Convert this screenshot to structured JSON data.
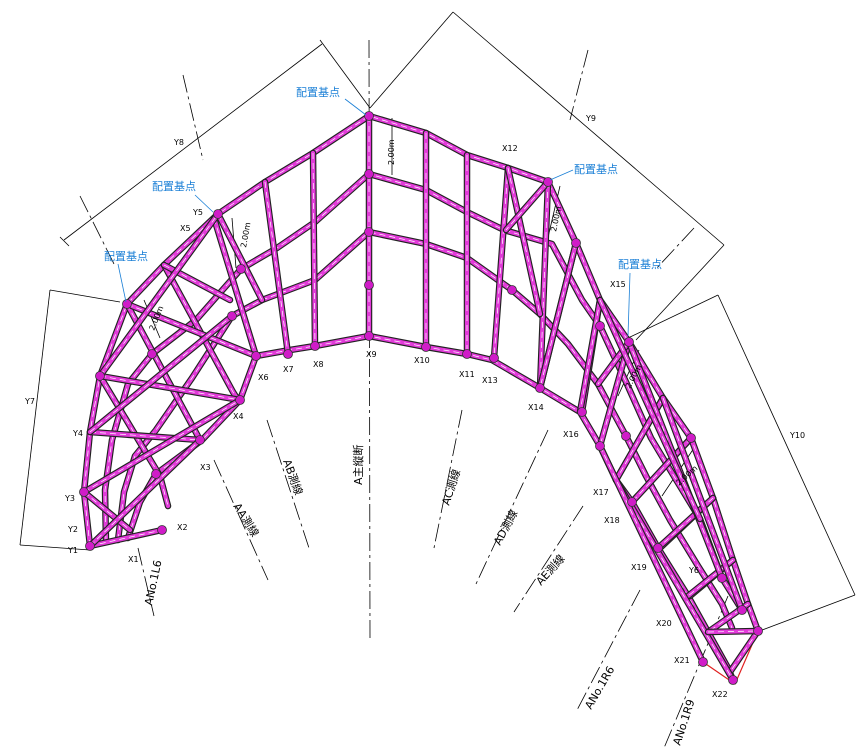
{
  "colors": {
    "beam": "#e23bd9",
    "beam_edge": "#222222",
    "node": "#d01cc8",
    "red_edge": "#e02020",
    "callout": "#1a7fd6"
  },
  "callouts": [
    "配置基点",
    "配置基点",
    "配置基点",
    "配置基点",
    "配置基点"
  ],
  "x_labels": [
    "X1",
    "X2",
    "X3",
    "X4",
    "X5",
    "X6",
    "X7",
    "X8",
    "X9",
    "X10",
    "X11",
    "X12",
    "X13",
    "X14",
    "X15",
    "X16",
    "X17",
    "X18",
    "X19",
    "X20",
    "X21",
    "X22"
  ],
  "y_labels": [
    "Y1",
    "Y2",
    "Y3",
    "Y4",
    "Y5",
    "Y6",
    "Y7",
    "Y8",
    "Y9",
    "Y10"
  ],
  "spacing_label": "2.00m",
  "survey_lines": [
    "A主縦断",
    "AB測線",
    "AA測線",
    "AC測線",
    "AD測線",
    "AE測線"
  ],
  "station_labels": [
    "ANo.1L6",
    "ANo.1R6",
    "ANo.1R9"
  ]
}
